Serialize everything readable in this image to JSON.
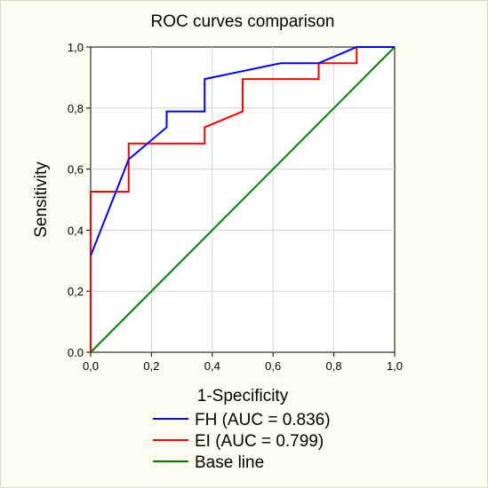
{
  "chart_data": {
    "type": "line",
    "title": "ROC curves comparison",
    "xlabel": "1-Specificity",
    "ylabel": "Sensitivity",
    "xlim": [
      0,
      1
    ],
    "ylim": [
      0,
      1
    ],
    "x_ticks": [
      "0,0",
      "0,2",
      "0,4",
      "0,6",
      "0,8",
      "1,0"
    ],
    "y_ticks": [
      "0.0",
      "0,2",
      "0,4",
      "0,6",
      "0,8",
      "1,0"
    ],
    "grid": true,
    "legend_position": "bottom",
    "series": [
      {
        "name": "FH (AUC = 0.836)",
        "color": "#0000ff",
        "x": [
          0,
          0.125,
          0.25,
          0.25,
          0.375,
          0.375,
          0.625,
          0.75,
          0.875,
          1.0
        ],
        "y": [
          0.316,
          0.632,
          0.737,
          0.789,
          0.789,
          0.895,
          0.947,
          0.947,
          1.0,
          1.0
        ]
      },
      {
        "name": "EI (AUC = 0.799)",
        "color": "#ff0000",
        "x": [
          0,
          0,
          0.125,
          0.125,
          0.375,
          0.375,
          0.5,
          0.5,
          0.75,
          0.75,
          0.875,
          0.875,
          1.0
        ],
        "y": [
          0,
          0.526,
          0.526,
          0.684,
          0.684,
          0.737,
          0.789,
          0.895,
          0.895,
          0.947,
          0.947,
          1.0,
          1.0
        ]
      },
      {
        "name": "Base line",
        "color": "#008000",
        "x": [
          0,
          1
        ],
        "y": [
          0,
          1
        ]
      }
    ]
  }
}
